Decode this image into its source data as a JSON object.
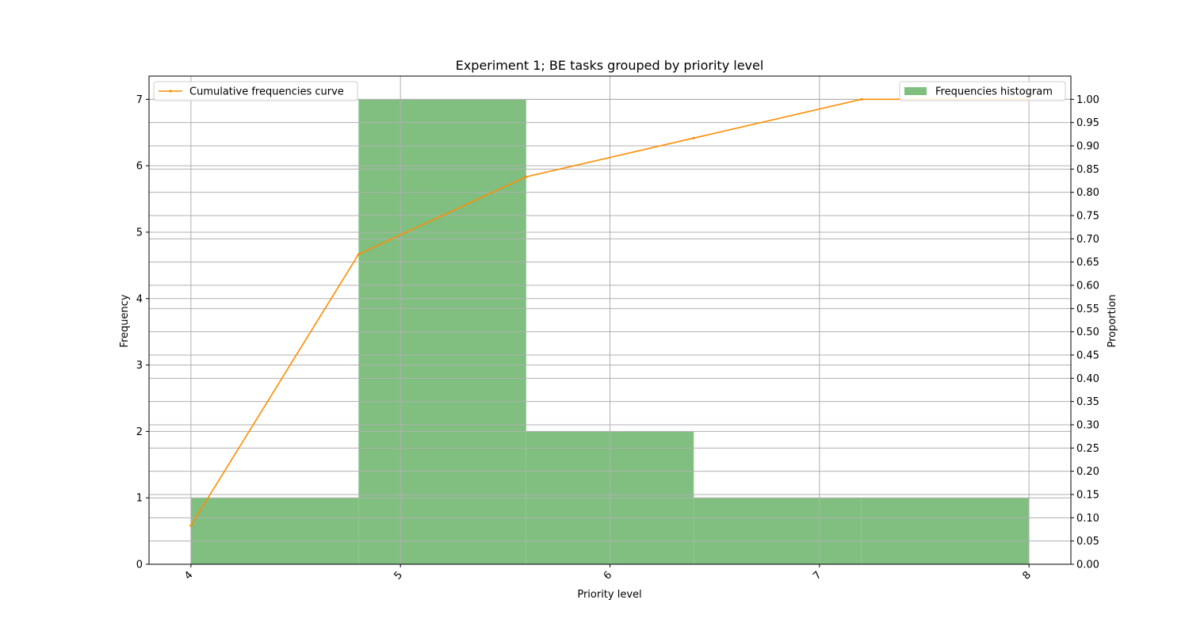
{
  "chart_data": {
    "type": "bar",
    "title": "Experiment 1; BE tasks grouped by priority level",
    "xlabel": "Priority level",
    "ylabel": "Frequency",
    "y2label": "Proportion",
    "xlim": [
      3.8,
      8.2
    ],
    "ylim": [
      0,
      7.35
    ],
    "y2lim": [
      0,
      1.05
    ],
    "x_ticks": [
      4,
      5,
      6,
      7,
      8
    ],
    "y_ticks": [
      0,
      1,
      2,
      3,
      4,
      5,
      6,
      7
    ],
    "y2_ticks": [
      "0.00",
      "0.05",
      "0.10",
      "0.15",
      "0.20",
      "0.25",
      "0.30",
      "0.35",
      "0.40",
      "0.45",
      "0.50",
      "0.55",
      "0.60",
      "0.65",
      "0.70",
      "0.75",
      "0.80",
      "0.85",
      "0.90",
      "0.95",
      "1.00"
    ],
    "grid": true,
    "bins": [
      {
        "start": 4.0,
        "end": 4.8,
        "value": 1
      },
      {
        "start": 4.8,
        "end": 5.6,
        "value": 7
      },
      {
        "start": 5.6,
        "end": 6.4,
        "value": 2
      },
      {
        "start": 6.4,
        "end": 7.2,
        "value": 1
      },
      {
        "start": 7.2,
        "end": 8.0,
        "value": 1
      }
    ],
    "series": [
      {
        "name": "Frequencies histogram",
        "kind": "bar",
        "axis": "left",
        "color": "#81bf81",
        "values": [
          1,
          7,
          2,
          1,
          1
        ]
      },
      {
        "name": "Cumulative frequencies curve",
        "kind": "line",
        "axis": "right",
        "color": "#ff8c00",
        "x": [
          4.0,
          4.8,
          5.6,
          6.4,
          7.2,
          8.0
        ],
        "values": [
          0.0833,
          0.6667,
          0.8333,
          0.9167,
          1.0,
          1.0
        ]
      }
    ],
    "legends": [
      {
        "position": "upper left",
        "series": "Cumulative frequencies curve"
      },
      {
        "position": "upper right",
        "series": "Frequencies histogram"
      }
    ]
  }
}
